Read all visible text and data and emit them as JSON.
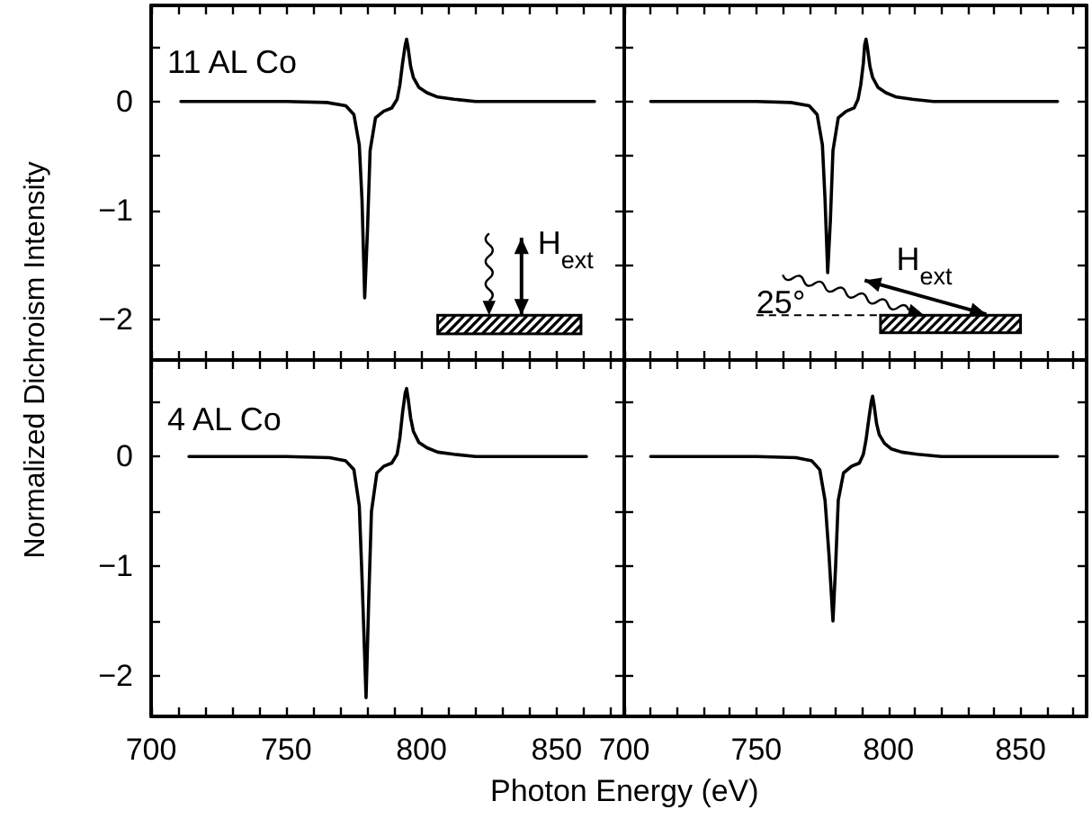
{
  "chart_data": [
    {
      "type": "line",
      "ylabel": "Normalized Dichroism Intensity",
      "annotations": [
        "11 AL Co",
        "H$_{ext}$"
      ],
      "xlim": [
        700,
        875
      ],
      "ylim": [
        -2.37,
        0.88
      ],
      "xticks": [
        700,
        {
          "value": 710,
          "label": null
        },
        {
          "value": 720,
          "label": null
        },
        {
          "value": 730,
          "label": null
        },
        {
          "value": 740,
          "label": null
        },
        750,
        {
          "value": 760,
          "label": null
        },
        {
          "value": 770,
          "label": null
        },
        {
          "value": 780,
          "label": null
        },
        {
          "value": 790,
          "label": null
        },
        800,
        {
          "value": 810,
          "label": null
        },
        {
          "value": 820,
          "label": null
        },
        {
          "value": 830,
          "label": null
        },
        {
          "value": 840,
          "label": null
        },
        850,
        {
          "value": 860,
          "label": null
        },
        {
          "value": 870,
          "label": null
        }
      ],
      "yticks": [
        -2,
        {
          "value": -1.5,
          "label": null
        },
        -1,
        {
          "value": -0.5,
          "label": null
        },
        0,
        {
          "value": 0.5,
          "label": null
        }
      ],
      "tick_labels": "y",
      "grid": false,
      "series": [
        {
          "color": "#000000",
          "x": [
            711,
            730,
            750,
            765,
            772,
            775,
            777,
            778,
            779,
            780,
            781,
            783,
            786,
            789,
            791,
            792,
            793,
            794,
            794.5,
            795,
            796,
            797,
            799,
            802,
            806,
            812,
            820,
            840,
            864
          ],
          "values": [
            0,
            0,
            0,
            -0.01,
            -0.04,
            -0.12,
            -0.4,
            -0.9,
            -1.8,
            -1.2,
            -0.45,
            -0.15,
            -0.09,
            -0.06,
            0.02,
            0.15,
            0.35,
            0.52,
            0.57,
            0.5,
            0.32,
            0.22,
            0.13,
            0.08,
            0.04,
            0.02,
            0,
            0,
            0
          ]
        }
      ]
    },
    {
      "type": "line",
      "annotations": [
        "H$_{ext}$",
        "25°"
      ],
      "xlim": [
        700,
        875
      ],
      "ylim": [
        -2.37,
        0.88
      ],
      "xticks": [
        700,
        {
          "value": 710,
          "label": null
        },
        {
          "value": 720,
          "label": null
        },
        {
          "value": 730,
          "label": null
        },
        {
          "value": 740,
          "label": null
        },
        750,
        {
          "value": 760,
          "label": null
        },
        {
          "value": 770,
          "label": null
        },
        {
          "value": 780,
          "label": null
        },
        {
          "value": 790,
          "label": null
        },
        800,
        {
          "value": 810,
          "label": null
        },
        {
          "value": 820,
          "label": null
        },
        {
          "value": 830,
          "label": null
        },
        {
          "value": 840,
          "label": null
        },
        850,
        {
          "value": 860,
          "label": null
        },
        {
          "value": 870,
          "label": null
        }
      ],
      "yticks": [
        -2,
        {
          "value": -1.5,
          "label": null
        },
        -1,
        {
          "value": -0.5,
          "label": null
        },
        0,
        {
          "value": 0.5,
          "label": null
        }
      ],
      "tick_labels": false,
      "grid": false,
      "series": [
        {
          "color": "#000000",
          "x": [
            710,
            730,
            750,
            763,
            770,
            773,
            775,
            776,
            777,
            778,
            779,
            781,
            784,
            787,
            788.5,
            789.5,
            790.5,
            791,
            791.5,
            792,
            793,
            794,
            796,
            799,
            803,
            809,
            817,
            840,
            864
          ],
          "values": [
            0,
            0,
            0,
            -0.01,
            -0.04,
            -0.12,
            -0.4,
            -0.9,
            -1.57,
            -1.1,
            -0.45,
            -0.15,
            -0.09,
            -0.06,
            0.02,
            0.15,
            0.35,
            0.52,
            0.57,
            0.5,
            0.32,
            0.22,
            0.13,
            0.08,
            0.04,
            0.02,
            0,
            0,
            0
          ]
        }
      ]
    },
    {
      "type": "line",
      "xlabel": "Photon Energy (eV)",
      "annotations": [
        "4 AL Co"
      ],
      "xlim": [
        700,
        875
      ],
      "ylim": [
        -2.37,
        0.88
      ],
      "xticks": [
        700,
        {
          "value": 710,
          "label": null
        },
        {
          "value": 720,
          "label": null
        },
        {
          "value": 730,
          "label": null
        },
        {
          "value": 740,
          "label": null
        },
        750,
        {
          "value": 760,
          "label": null
        },
        {
          "value": 770,
          "label": null
        },
        {
          "value": 780,
          "label": null
        },
        {
          "value": 790,
          "label": null
        },
        800,
        {
          "value": 810,
          "label": null
        },
        {
          "value": 820,
          "label": null
        },
        {
          "value": 830,
          "label": null
        },
        {
          "value": 840,
          "label": null
        },
        850,
        {
          "value": 860,
          "label": null
        },
        {
          "value": 870,
          "label": null
        }
      ],
      "yticks": [
        -2,
        {
          "value": -1.5,
          "label": null
        },
        -1,
        {
          "value": -0.5,
          "label": null
        },
        0,
        {
          "value": 0.5,
          "label": null
        }
      ],
      "grid": false,
      "series": [
        {
          "color": "#000000",
          "x": [
            714,
            730,
            750,
            766,
            772,
            775,
            777,
            778,
            779.5,
            780.5,
            781.5,
            783.5,
            786,
            789,
            791,
            792,
            793,
            794,
            794.5,
            795,
            796,
            797,
            799,
            802,
            806,
            812,
            820,
            840,
            861
          ],
          "values": [
            0,
            0,
            0,
            -0.01,
            -0.04,
            -0.12,
            -0.45,
            -1.1,
            -2.2,
            -1.3,
            -0.5,
            -0.15,
            -0.09,
            -0.06,
            0.02,
            0.17,
            0.4,
            0.58,
            0.62,
            0.54,
            0.35,
            0.23,
            0.13,
            0.08,
            0.04,
            0.02,
            0,
            0,
            0
          ]
        }
      ]
    },
    {
      "type": "line",
      "xlim": [
        700,
        875
      ],
      "ylim": [
        -2.37,
        0.88
      ],
      "xticks": [
        700,
        {
          "value": 710,
          "label": null
        },
        {
          "value": 720,
          "label": null
        },
        {
          "value": 730,
          "label": null
        },
        {
          "value": 740,
          "label": null
        },
        750,
        {
          "value": 760,
          "label": null
        },
        {
          "value": 770,
          "label": null
        },
        {
          "value": 780,
          "label": null
        },
        {
          "value": 790,
          "label": null
        },
        800,
        {
          "value": 810,
          "label": null
        },
        {
          "value": 820,
          "label": null
        },
        {
          "value": 830,
          "label": null
        },
        {
          "value": 840,
          "label": null
        },
        850,
        {
          "value": 860,
          "label": null
        },
        {
          "value": 870,
          "label": null
        }
      ],
      "yticks": [
        -2,
        {
          "value": -1.5,
          "label": null
        },
        -1,
        {
          "value": -0.5,
          "label": null
        },
        0,
        {
          "value": 0.5,
          "label": null
        }
      ],
      "tick_labels": "x",
      "grid": false,
      "series": [
        {
          "color": "#000000",
          "x": [
            710,
            730,
            750,
            765,
            771,
            774,
            776,
            777.5,
            779,
            780,
            781,
            783,
            786,
            789,
            790.5,
            791.5,
            792.5,
            793.5,
            794,
            794.5,
            795.5,
            796.5,
            798.5,
            801,
            805,
            811,
            820,
            840,
            864
          ],
          "values": [
            0,
            0,
            0,
            -0.01,
            -0.04,
            -0.12,
            -0.4,
            -0.9,
            -1.5,
            -1.0,
            -0.4,
            -0.15,
            -0.09,
            -0.06,
            0.02,
            0.15,
            0.33,
            0.5,
            0.55,
            0.48,
            0.3,
            0.2,
            0.12,
            0.07,
            0.04,
            0.02,
            0,
            0,
            0
          ]
        }
      ]
    }
  ]
}
